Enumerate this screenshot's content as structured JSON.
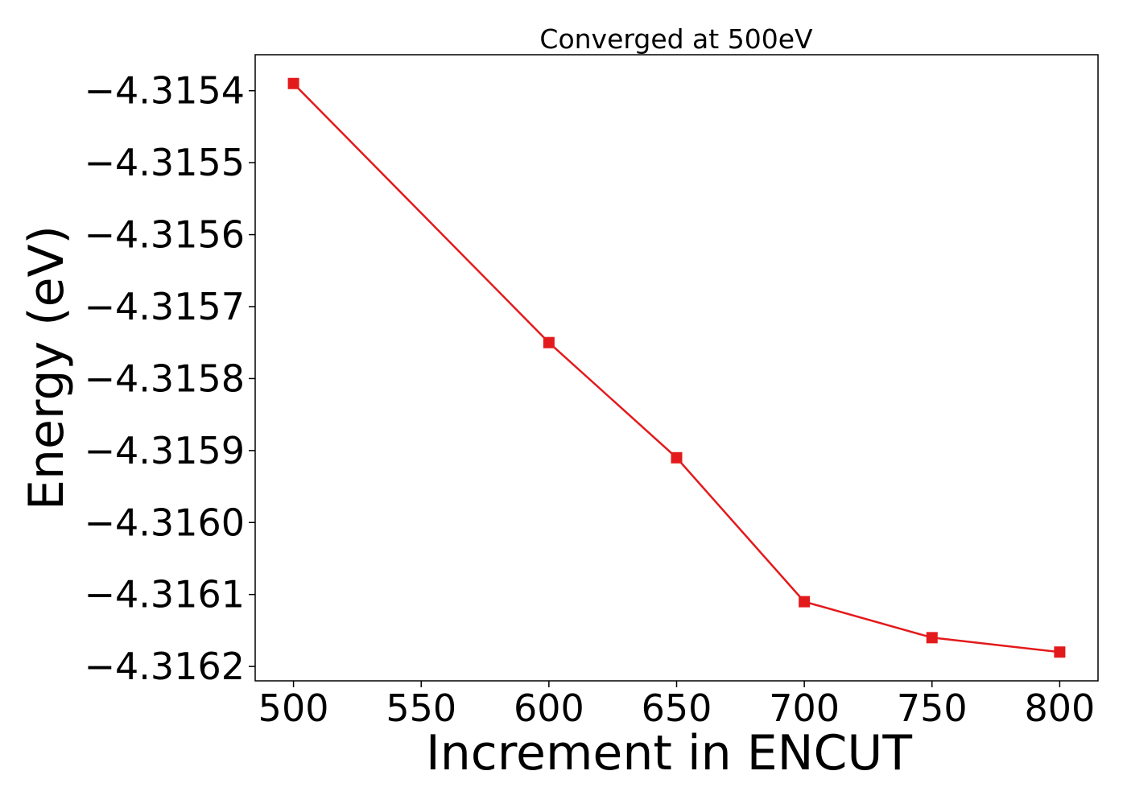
{
  "chart_data": {
    "type": "line",
    "title": "Converged at 500eV",
    "xlabel": "Increment in ENCUT",
    "ylabel": "Energy (eV)",
    "x_ticks": [
      "500",
      "550",
      "600",
      "650",
      "700",
      "750",
      "800"
    ],
    "y_ticks": [
      "−4.3154",
      "−4.3155",
      "−4.3156",
      "−4.3157",
      "−4.3158",
      "−4.3159",
      "−4.3160",
      "−4.3161",
      "−4.3162"
    ],
    "xlim": [
      485,
      815
    ],
    "ylim": [
      -4.31622,
      -4.31535
    ],
    "grid": false,
    "series": [
      {
        "color": "#e31a1c",
        "marker": "square",
        "x": [
          500,
          600,
          650,
          700,
          750,
          800
        ],
        "y": [
          -4.31539,
          -4.31575,
          -4.31591,
          -4.31611,
          -4.31616,
          -4.31618
        ]
      }
    ]
  }
}
